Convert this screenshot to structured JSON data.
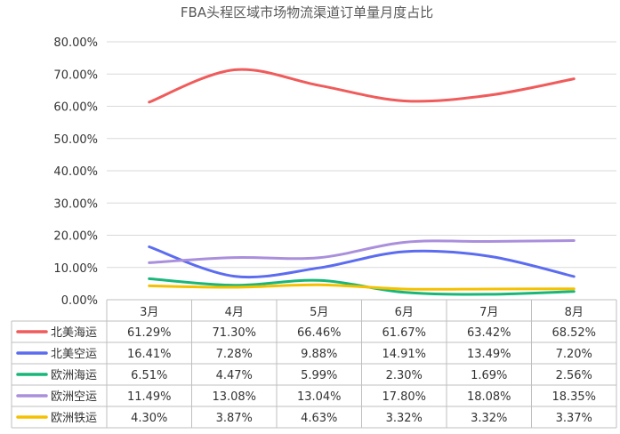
{
  "chart_data": {
    "type": "line",
    "title": "FBA头程区域市场物流渠道订单量月度占比",
    "categories": [
      "3月",
      "4月",
      "5月",
      "6月",
      "7月",
      "8月"
    ],
    "y_tick_labels": [
      "0.00%",
      "10.00%",
      "20.00%",
      "30.00%",
      "40.00%",
      "50.00%",
      "60.00%",
      "70.00%",
      "80.00%"
    ],
    "ylim": [
      0,
      80
    ],
    "grid": true,
    "legend": "data-table",
    "smooth": true,
    "series": [
      {
        "name": "北美海运",
        "color": "#f05b5b",
        "values": [
          61.29,
          71.3,
          66.46,
          61.67,
          63.42,
          68.52
        ],
        "labels": [
          "61.29%",
          "71.30%",
          "66.46%",
          "61.67%",
          "63.42%",
          "68.52%"
        ]
      },
      {
        "name": "北美空运",
        "color": "#5b6cf0",
        "values": [
          16.41,
          7.28,
          9.88,
          14.91,
          13.49,
          7.2
        ],
        "labels": [
          "16.41%",
          "7.28%",
          "9.88%",
          "14.91%",
          "13.49%",
          "7.20%"
        ]
      },
      {
        "name": "欧洲海运",
        "color": "#19b67a",
        "values": [
          6.51,
          4.47,
          5.99,
          2.3,
          1.69,
          2.56
        ],
        "labels": [
          "6.51%",
          "4.47%",
          "5.99%",
          "2.30%",
          "1.69%",
          "2.56%"
        ]
      },
      {
        "name": "欧洲空运",
        "color": "#aa8fdc",
        "values": [
          11.49,
          13.08,
          13.04,
          17.8,
          18.08,
          18.35
        ],
        "labels": [
          "11.49%",
          "13.08%",
          "13.04%",
          "17.80%",
          "18.08%",
          "18.35%"
        ]
      },
      {
        "name": "欧洲铁运",
        "color": "#f5c000",
        "values": [
          4.3,
          3.87,
          4.63,
          3.32,
          3.32,
          3.37
        ],
        "labels": [
          "4.30%",
          "3.87%",
          "4.63%",
          "3.32%",
          "3.32%",
          "3.37%"
        ]
      }
    ]
  }
}
